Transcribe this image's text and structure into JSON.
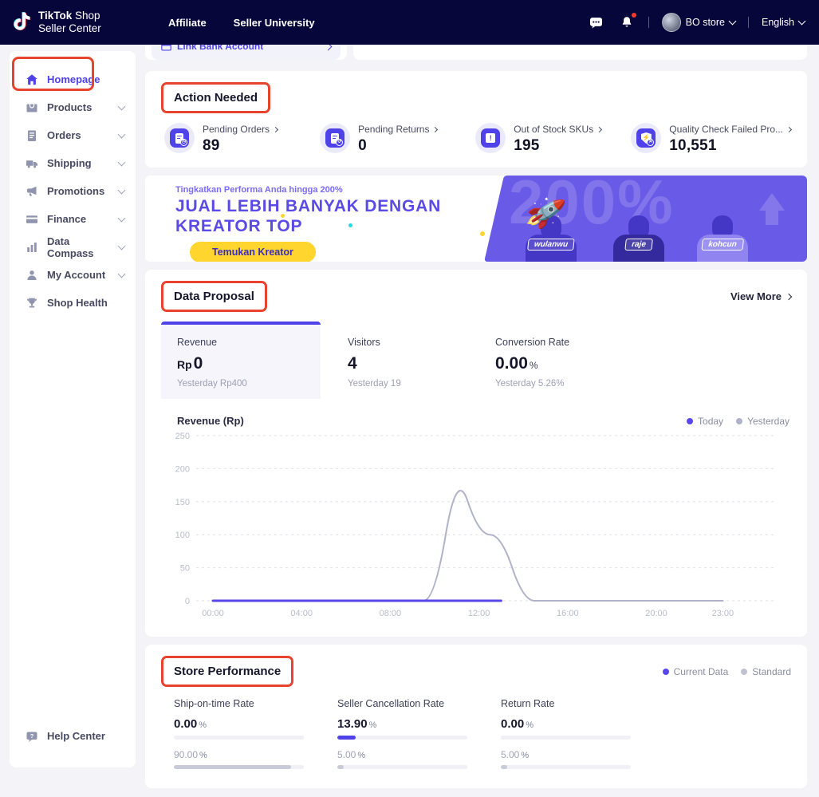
{
  "colors": {
    "accent": "#4F42E8",
    "annotation_red": "#E8432D",
    "navbar_bg": "#07063A",
    "banner_purple": "#6A5AE8",
    "button_yellow": "#FFD52E",
    "today": "#5847EA",
    "yesterday": "#AFB2C8",
    "standard_gray": "#C9CBD8"
  },
  "navbar": {
    "logo_line1_bold": "TikTok",
    "logo_line1_light": " Shop",
    "logo_line2": "Seller Center",
    "links": [
      {
        "label": "Affiliate"
      },
      {
        "label": "Seller University"
      }
    ],
    "store_name": "BO store",
    "language": "English"
  },
  "sidebar": {
    "items": [
      {
        "label": "Homepage"
      },
      {
        "label": "Products"
      },
      {
        "label": "Orders"
      },
      {
        "label": "Shipping"
      },
      {
        "label": "Promotions"
      },
      {
        "label": "Finance"
      },
      {
        "label": "Data Compass"
      },
      {
        "label": "My Account"
      },
      {
        "label": "Shop Health"
      }
    ],
    "help_label": "Help Center"
  },
  "top_strip": {
    "link_bank_label": "Link Bank Account"
  },
  "action_needed": {
    "title": "Action Needed",
    "items": [
      {
        "label": "Pending Orders",
        "value": "89"
      },
      {
        "label": "Pending Returns",
        "value": "0"
      },
      {
        "label": "Out of Stock SKUs",
        "value": "195"
      },
      {
        "label": "Quality Check Failed Pro...",
        "value": "10,551"
      }
    ]
  },
  "banner": {
    "eyebrow": "Tingkatkan Performa Anda hingga 200%",
    "title_line1": "JUAL LEBIH BANYAK DENGAN",
    "title_line2": "KREATOR TOP",
    "cta": "Temukan Kreator",
    "bg_text": "200%",
    "creators": [
      {
        "name": "wulanwu"
      },
      {
        "name": "raje"
      },
      {
        "name": "kohcun"
      }
    ]
  },
  "data_proposal": {
    "title": "Data Proposal",
    "view_more": "View More",
    "metrics": [
      {
        "label": "Revenue",
        "prefix": "Rp",
        "value": "0",
        "suffix": "",
        "yesterday": "Yesterday Rp400"
      },
      {
        "label": "Visitors",
        "prefix": "",
        "value": "4",
        "suffix": "",
        "yesterday": "Yesterday 19"
      },
      {
        "label": "Conversion Rate",
        "prefix": "",
        "value": "0.00",
        "suffix": "%",
        "yesterday": "Yesterday 5.26%"
      }
    ]
  },
  "chart_data": {
    "type": "line",
    "title": "Revenue (Rp)",
    "x_unit": "hour of day",
    "ylim": [
      0,
      250
    ],
    "yticks": [
      250,
      200,
      150,
      100,
      50,
      0
    ],
    "xticks": [
      {
        "label": "00:00",
        "h": 0
      },
      {
        "label": "04:00",
        "h": 4
      },
      {
        "label": "08:00",
        "h": 8
      },
      {
        "label": "12:00",
        "h": 12
      },
      {
        "label": "16:00",
        "h": 16
      },
      {
        "label": "20:00",
        "h": 20
      },
      {
        "label": "23:00",
        "h": 23
      }
    ],
    "grid": "horizontal dashed",
    "legend_position": "top-right",
    "series": [
      {
        "name": "Yesterday",
        "color": "#AFB2C8",
        "stroke_width": 2,
        "values": [
          0,
          0,
          0,
          0,
          0,
          0,
          0,
          0,
          0,
          0,
          0,
          200,
          100,
          100,
          0,
          0,
          0,
          0,
          0,
          0,
          0,
          0,
          0,
          0
        ]
      },
      {
        "name": "Today",
        "color": "#5847EA",
        "stroke_width": 3,
        "values": [
          0,
          0,
          0,
          0,
          0,
          0,
          0,
          0,
          0,
          0,
          0,
          0,
          0,
          0
        ]
      }
    ],
    "legend": [
      {
        "label": "Today",
        "color": "#5847EA"
      },
      {
        "label": "Yesterday",
        "color": "#AFB2C8"
      }
    ]
  },
  "store_performance": {
    "title": "Store Performance",
    "legend": [
      {
        "label": "Current Data",
        "color": "#5847EA"
      },
      {
        "label": "Standard",
        "color": "#C0C2D0"
      }
    ],
    "pct_suffix": "%",
    "metrics": [
      {
        "label": "Ship-on-time Rate",
        "current": "0.00",
        "current_pct": 0,
        "standard": "90.00",
        "standard_pct": 90
      },
      {
        "label": "Seller Cancellation Rate",
        "current": "13.90",
        "current_pct": 13.9,
        "standard": "5.00",
        "standard_pct": 5
      },
      {
        "label": "Return Rate",
        "current": "0.00",
        "current_pct": 0,
        "standard": "5.00",
        "standard_pct": 5
      }
    ]
  }
}
